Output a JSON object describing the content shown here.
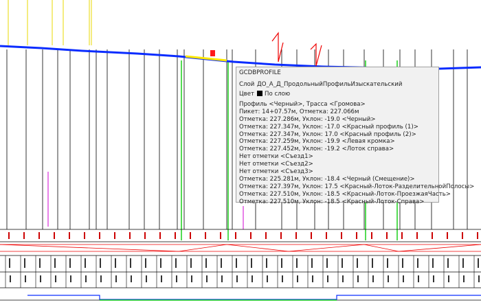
{
  "tooltip": {
    "title": "GCDBPROFILE",
    "properties": [
      {
        "label": "Слой",
        "value": "ДО_А_Д_ПродольныйПрофильИзыскательский"
      },
      {
        "label": "Цвет",
        "value": "По слою"
      }
    ],
    "lines": [
      "Профиль <Черный>, Трасса <Громова>",
      "Пикет: 14+07.57м, Отметка: 227.066м",
      "Отметка: 227.286м, Уклон: -19.0 <Черный>",
      "Отметка: 227.347м, Уклон: -17.0 <Красный профиль (1)>",
      "Отметка: 227.347м, Уклон: 17.0 <Красный профиль (2)>",
      "Отметка: 227.259м, Уклон: -19.9 <Левая кромка>",
      "Отметка: 227.452м, Уклон: -19.2 <Лоток справа>",
      "Нет отметки <Съезд1>",
      "Нет отметки <Съезд2>",
      "Нет отметки <Съезд3>",
      "Отметка: 225.281м, Уклон: -18.4 <Черный (Смещение)>",
      "Отметка: 227.397м, Уклон: 17.5 <Красный-Лоток-РазделительнойПолосы>",
      "Отметка: 227.510м, Уклон: -18.5 <Красный-Лоток-ПроезжаяЧасть>",
      "Отметка: 227.510м, Уклон: -18.5 <Красный-Лоток-Справа>"
    ]
  }
}
